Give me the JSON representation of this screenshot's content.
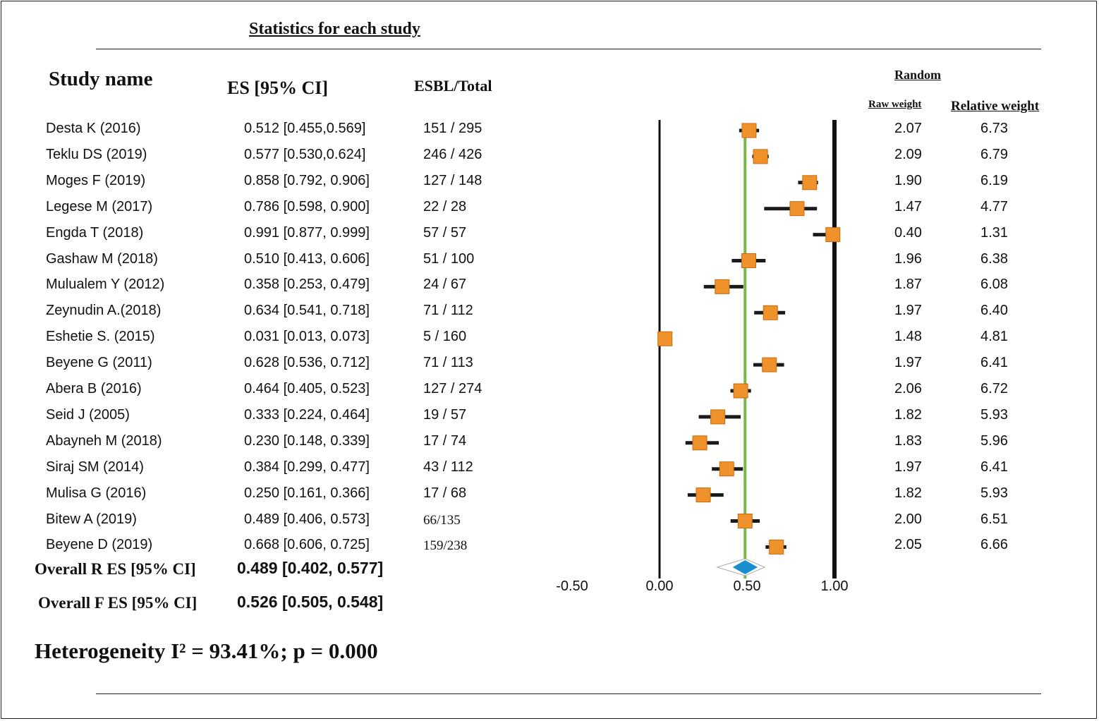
{
  "title": "Statistics for each study",
  "headers": {
    "study_name": "Study name",
    "es": "ES [95% CI]",
    "esbl_total": "ESBL/Total",
    "random": "Random",
    "raw_weight": "Raw weight",
    "relative_weight": "Relative weight"
  },
  "rows": [
    {
      "name": "Desta K (2016)",
      "es": "0.512 [0.455,0.569]",
      "ratio": "151 / 295",
      "raw": "2.07",
      "rel": "6.73"
    },
    {
      "name": "Teklu DS (2019)",
      "es": "0.577 [0.530,0.624]",
      "ratio": "246 / 426",
      "raw": "2.09",
      "rel": "6.79"
    },
    {
      "name": "Moges F (2019)",
      "es": "0.858 [0.792, 0.906]",
      "ratio": "127 / 148",
      "raw": "1.90",
      "rel": "6.19"
    },
    {
      "name": "Legese M (2017)",
      "es": "0.786 [0.598, 0.900]",
      "ratio": "22 / 28",
      "raw": "1.47",
      "rel": "4.77"
    },
    {
      "name": "Engda T (2018)",
      "es": "0.991 [0.877, 0.999]",
      "ratio": "57 / 57",
      "raw": "0.40",
      "rel": "1.31"
    },
    {
      "name": "Gashaw M (2018)",
      "es": "0.510 [0.413, 0.606]",
      "ratio": "51 / 100",
      "raw": "1.96",
      "rel": "6.38"
    },
    {
      "name": "Mulualem Y (2012)",
      "es": "0.358 [0.253, 0.479]",
      "ratio": "24 / 67",
      "raw": "1.87",
      "rel": "6.08"
    },
    {
      "name": "Zeynudin A.(2018)",
      "es": "0.634 [0.541, 0.718]",
      "ratio": "71 / 112",
      "raw": "1.97",
      "rel": "6.40"
    },
    {
      "name": "Eshetie S. (2015)",
      "es": "0.031 [0.013, 0.073]",
      "ratio": "5 / 160",
      "raw": "1.48",
      "rel": "4.81"
    },
    {
      "name": "Beyene G (2011)",
      "es": "0.628 [0.536, 0.712]",
      "ratio": "71 / 113",
      "raw": "1.97",
      "rel": "6.41"
    },
    {
      "name": "Abera B (2016)",
      "es": "0.464 [0.405, 0.523]",
      "ratio": "127 / 274",
      "raw": "2.06",
      "rel": "6.72"
    },
    {
      "name": "Seid J (2005)",
      "es": "0.333 [0.224, 0.464]",
      "ratio": "19 / 57",
      "raw": "1.82",
      "rel": "5.93"
    },
    {
      "name": "Abayneh M (2018)",
      "es": "0.230 [0.148, 0.339]",
      "ratio": "17 / 74",
      "raw": "1.83",
      "rel": "5.96"
    },
    {
      "name": "Siraj SM (2014)",
      "es": "0.384 [0.299, 0.477]",
      "ratio": "43 / 112",
      "raw": "1.97",
      "rel": "6.41"
    },
    {
      "name": "Mulisa G (2016)",
      "es": "0.250 [0.161, 0.366]",
      "ratio": "17 / 68",
      "raw": "1.82",
      "rel": "5.93"
    },
    {
      "name": "Bitew A (2019)",
      "es": "0.489 [0.406, 0.573]",
      "ratio": "66/135",
      "raw": "2.00",
      "rel": "6.51"
    },
    {
      "name": "Beyene D (2019)",
      "es": "0.668 [0.606, 0.725]",
      "ratio": "159/238",
      "raw": "2.05",
      "rel": "6.66"
    }
  ],
  "overall_r": {
    "label": "Overall R ES [95% CI]",
    "value": "0.489 [0.402, 0.577]"
  },
  "overall_f": {
    "label": "Overall F ES [95% CI]",
    "value": "0.526 [0.505, 0.548]"
  },
  "heterogeneity": "Heterogeneity I² = 93.41%; p = 0.000",
  "colors": {
    "square": "#f0922c",
    "square_border": "#c96a10",
    "pooled_line": "#7ab648",
    "diamond": "#1a8fd0",
    "ci_line": "#1a1a1a"
  },
  "chart_data": {
    "type": "forest",
    "xlim": [
      -0.5,
      1.0
    ],
    "x_ticks": [
      -0.5,
      0.0,
      0.5,
      1.0
    ],
    "x_tick_labels": [
      "-0.50",
      "0.00",
      "0.50",
      "1.00"
    ],
    "reference_lines": [
      0.0,
      1.0
    ],
    "pooled_estimate": 0.489,
    "pooled_ci": [
      0.402,
      0.577
    ],
    "studies": [
      {
        "name": "Desta K (2016)",
        "es": 0.512,
        "lo": 0.455,
        "hi": 0.569
      },
      {
        "name": "Teklu DS (2019)",
        "es": 0.577,
        "lo": 0.53,
        "hi": 0.624
      },
      {
        "name": "Moges F (2019)",
        "es": 0.858,
        "lo": 0.792,
        "hi": 0.906
      },
      {
        "name": "Legese M (2017)",
        "es": 0.786,
        "lo": 0.598,
        "hi": 0.9
      },
      {
        "name": "Engda T (2018)",
        "es": 0.991,
        "lo": 0.877,
        "hi": 0.999
      },
      {
        "name": "Gashaw M (2018)",
        "es": 0.51,
        "lo": 0.413,
        "hi": 0.606
      },
      {
        "name": "Mulualem Y (2012)",
        "es": 0.358,
        "lo": 0.253,
        "hi": 0.479
      },
      {
        "name": "Zeynudin A.(2018)",
        "es": 0.634,
        "lo": 0.541,
        "hi": 0.718
      },
      {
        "name": "Eshetie S. (2015)",
        "es": 0.031,
        "lo": 0.013,
        "hi": 0.073
      },
      {
        "name": "Beyene G (2011)",
        "es": 0.628,
        "lo": 0.536,
        "hi": 0.712
      },
      {
        "name": "Abera B (2016)",
        "es": 0.464,
        "lo": 0.405,
        "hi": 0.523
      },
      {
        "name": "Seid J (2005)",
        "es": 0.333,
        "lo": 0.224,
        "hi": 0.464
      },
      {
        "name": "Abayneh M (2018)",
        "es": 0.23,
        "lo": 0.148,
        "hi": 0.339
      },
      {
        "name": "Siraj SM (2014)",
        "es": 0.384,
        "lo": 0.299,
        "hi": 0.477
      },
      {
        "name": "Mulisa G (2016)",
        "es": 0.25,
        "lo": 0.161,
        "hi": 0.366
      },
      {
        "name": "Bitew A (2019)",
        "es": 0.489,
        "lo": 0.406,
        "hi": 0.573
      },
      {
        "name": "Beyene D (2019)",
        "es": 0.668,
        "lo": 0.606,
        "hi": 0.725
      }
    ]
  }
}
